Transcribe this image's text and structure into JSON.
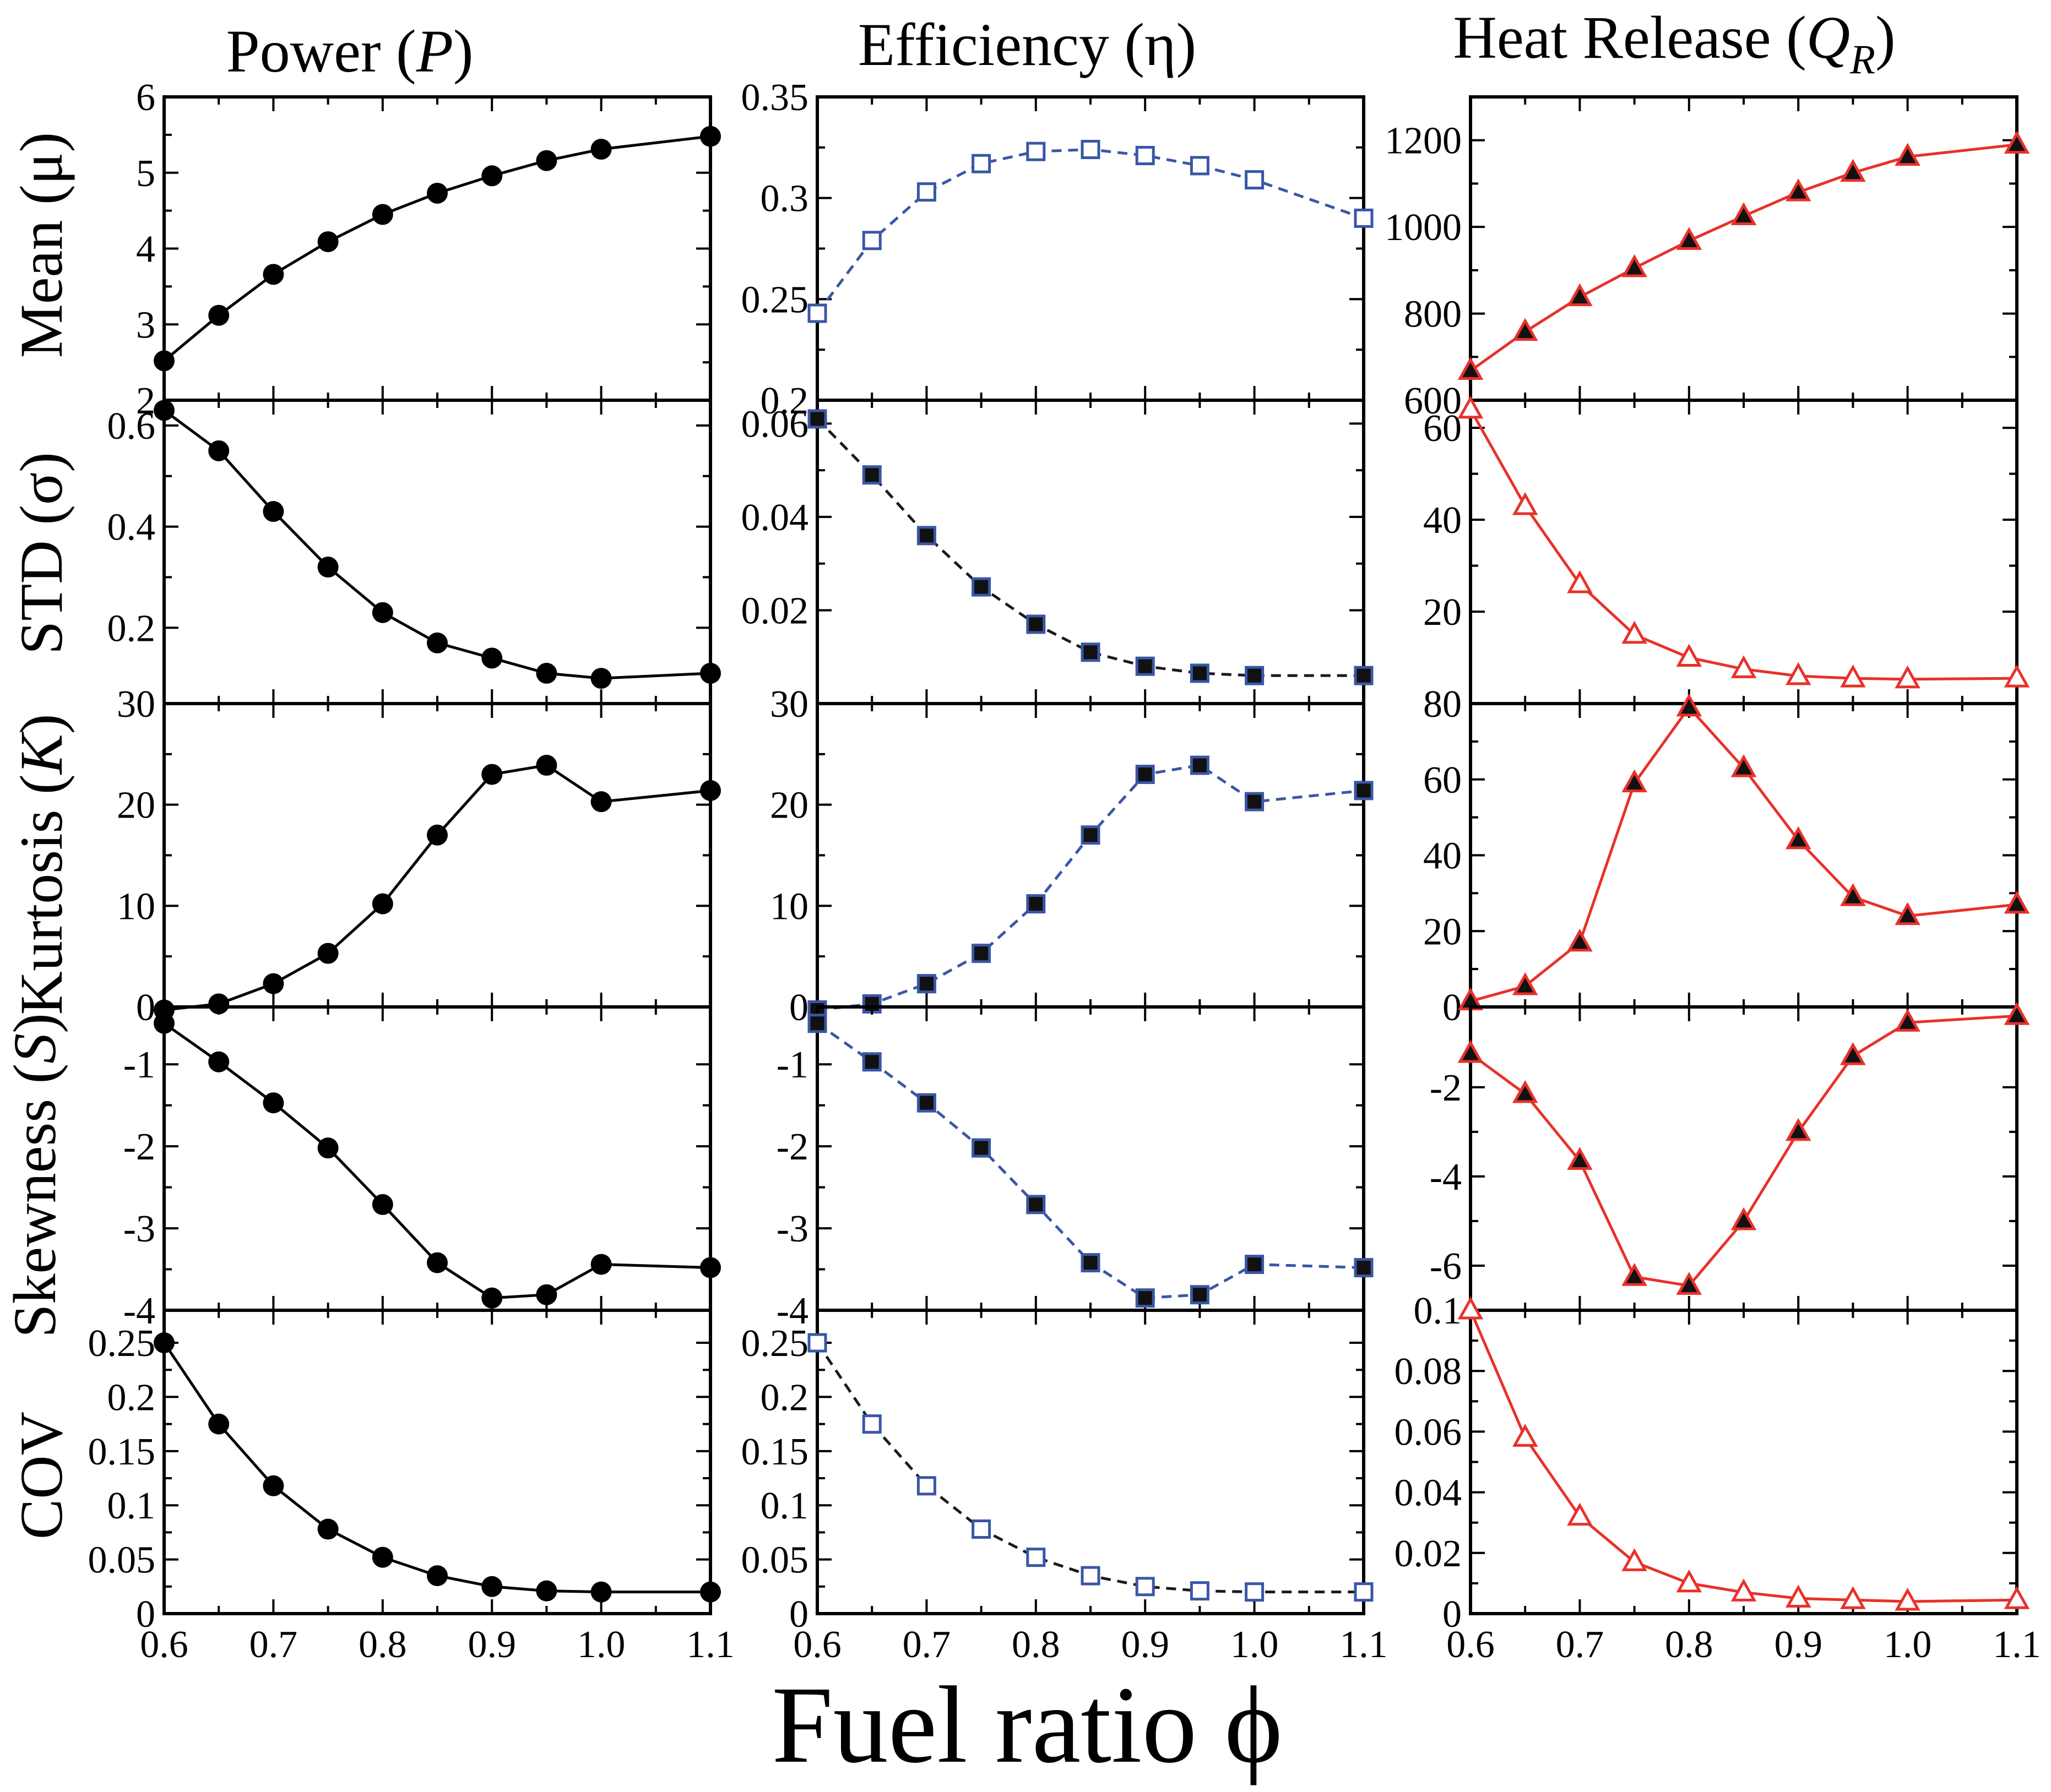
{
  "figure": {
    "x_label": "Fuel ratio ϕ",
    "x_ticks": [
      "0.6",
      "0.7",
      "0.8",
      "0.9",
      "1.0",
      "1.1"
    ]
  },
  "columns": [
    {
      "title": "Power",
      "symbol": "P",
      "color": "#000000"
    },
    {
      "title": "Efficiency",
      "symbol": "η",
      "color": "#3a56a5"
    },
    {
      "title": "Heat Release",
      "symbol": "Q",
      "subscript": "R",
      "color": "#e8312a"
    }
  ],
  "rows": [
    {
      "label": "Mean",
      "symbol": "μ",
      "symbol_italic": false
    },
    {
      "label": "STD",
      "symbol": "σ",
      "symbol_italic": false
    },
    {
      "label": "Kurtosis",
      "symbol": "K",
      "symbol_italic": true
    },
    {
      "label": "Skewness",
      "symbol": "S",
      "symbol_italic": true
    },
    {
      "label": "COV",
      "symbol": "",
      "symbol_italic": false
    }
  ],
  "chart_data": [
    {
      "type": "line",
      "column": 0,
      "row": 0,
      "x": [
        0.6,
        0.65,
        0.7,
        0.75,
        0.8,
        0.85,
        0.9,
        0.95,
        1.0,
        1.1
      ],
      "values": [
        2.52,
        3.12,
        3.66,
        4.09,
        4.45,
        4.73,
        4.96,
        5.16,
        5.31,
        5.48
      ],
      "ylim": [
        2,
        6
      ],
      "yticks": [
        2,
        3,
        4,
        5,
        6
      ],
      "ytick_labels": [
        "2",
        "3",
        "4",
        "5",
        "6"
      ],
      "marker": "circle",
      "line_color": "#000000",
      "marker_color": "#000000"
    },
    {
      "type": "line",
      "column": 0,
      "row": 1,
      "x": [
        0.6,
        0.65,
        0.7,
        0.75,
        0.8,
        0.85,
        0.9,
        0.95,
        1.0,
        1.1
      ],
      "values": [
        0.63,
        0.55,
        0.43,
        0.32,
        0.23,
        0.17,
        0.14,
        0.11,
        0.1,
        0.11
      ],
      "ylim": [
        0.05,
        0.65
      ],
      "yticks": [
        0.2,
        0.4,
        0.6
      ],
      "ytick_labels": [
        "0.2",
        "0.4",
        "0.6"
      ],
      "marker": "circle",
      "line_color": "#000000",
      "marker_color": "#000000"
    },
    {
      "type": "line",
      "column": 0,
      "row": 2,
      "x": [
        0.6,
        0.65,
        0.7,
        0.75,
        0.8,
        0.85,
        0.9,
        0.95,
        1.0,
        1.1
      ],
      "values": [
        -0.3,
        0.3,
        2.3,
        5.3,
        10.2,
        17.0,
        23.0,
        23.9,
        20.3,
        21.4
      ],
      "ylim": [
        0,
        30
      ],
      "yticks": [
        0,
        10,
        20,
        30
      ],
      "ytick_labels": [
        "0",
        "10",
        "20",
        "30"
      ],
      "marker": "circle",
      "line_color": "#000000",
      "marker_color": "#000000"
    },
    {
      "type": "line",
      "column": 0,
      "row": 3,
      "x": [
        0.6,
        0.65,
        0.7,
        0.75,
        0.8,
        0.85,
        0.9,
        0.95,
        1.0,
        1.1
      ],
      "values": [
        -0.5,
        -0.97,
        -1.47,
        -2.02,
        -2.71,
        -3.42,
        -3.85,
        -3.81,
        -3.44,
        -3.48
      ],
      "ylim": [
        -4,
        -0.3
      ],
      "yticks": [
        -4,
        -3,
        -2,
        -1
      ],
      "ytick_labels": [
        "-4",
        "-3",
        "-2",
        "-1"
      ],
      "marker": "circle",
      "line_color": "#000000",
      "marker_color": "#000000"
    },
    {
      "type": "line",
      "column": 0,
      "row": 4,
      "x": [
        0.6,
        0.65,
        0.7,
        0.75,
        0.8,
        0.85,
        0.9,
        0.95,
        1.0,
        1.1
      ],
      "values": [
        0.25,
        0.175,
        0.118,
        0.078,
        0.052,
        0.035,
        0.025,
        0.021,
        0.02,
        0.02
      ],
      "ylim": [
        0,
        0.28
      ],
      "yticks": [
        0,
        0.05,
        0.1,
        0.15,
        0.2,
        0.25
      ],
      "ytick_labels": [
        "0",
        "0.05",
        "0.1",
        "0.15",
        "0.2",
        "0.25"
      ],
      "marker": "circle",
      "line_color": "#000000",
      "marker_color": "#000000"
    },
    {
      "type": "line",
      "column": 1,
      "row": 0,
      "x": [
        0.6,
        0.65,
        0.7,
        0.75,
        0.8,
        0.85,
        0.9,
        0.95,
        1.0,
        1.1
      ],
      "values": [
        0.243,
        0.279,
        0.303,
        0.317,
        0.323,
        0.324,
        0.321,
        0.316,
        0.309,
        0.29
      ],
      "ylim": [
        0.2,
        0.35
      ],
      "yticks": [
        0.2,
        0.25,
        0.3,
        0.35
      ],
      "ytick_labels": [
        "0.2",
        "0.25",
        "0.3",
        "0.35"
      ],
      "marker": "square-open",
      "line_color": "#3a56a5",
      "marker_color": "#3a56a5"
    },
    {
      "type": "line",
      "column": 1,
      "row": 1,
      "x": [
        0.6,
        0.65,
        0.7,
        0.75,
        0.8,
        0.85,
        0.9,
        0.95,
        1.0,
        1.1
      ],
      "values": [
        0.061,
        0.049,
        0.036,
        0.025,
        0.017,
        0.011,
        0.008,
        0.0065,
        0.006,
        0.006
      ],
      "ylim": [
        0,
        0.065
      ],
      "yticks": [
        0.02,
        0.04,
        0.06
      ],
      "ytick_labels": [
        "0.02",
        "0.04",
        "0.06"
      ],
      "marker": "square-filled",
      "line_color": "#1a1a1a",
      "marker_color": "#3a56a5"
    },
    {
      "type": "line",
      "column": 1,
      "row": 2,
      "x": [
        0.6,
        0.65,
        0.7,
        0.75,
        0.8,
        0.85,
        0.9,
        0.95,
        1.0,
        1.1
      ],
      "values": [
        -0.3,
        0.3,
        2.3,
        5.3,
        10.2,
        17.0,
        23.0,
        23.9,
        20.3,
        21.4
      ],
      "ylim": [
        0,
        30
      ],
      "yticks": [
        0,
        10,
        20,
        30
      ],
      "ytick_labels": [
        "0",
        "10",
        "20",
        "30"
      ],
      "marker": "square-filled",
      "line_color": "#3a56a5",
      "marker_color": "#3a56a5"
    },
    {
      "type": "line",
      "column": 1,
      "row": 3,
      "x": [
        0.6,
        0.65,
        0.7,
        0.75,
        0.8,
        0.85,
        0.9,
        0.95,
        1.0,
        1.1
      ],
      "values": [
        -0.5,
        -0.97,
        -1.47,
        -2.02,
        -2.71,
        -3.42,
        -3.85,
        -3.81,
        -3.44,
        -3.48
      ],
      "ylim": [
        -4,
        -0.3
      ],
      "yticks": [
        -4,
        -3,
        -2,
        -1
      ],
      "ytick_labels": [
        "-4",
        "-3",
        "-2",
        "-1"
      ],
      "marker": "square-filled",
      "line_color": "#3a56a5",
      "marker_color": "#3a56a5"
    },
    {
      "type": "line",
      "column": 1,
      "row": 4,
      "x": [
        0.6,
        0.65,
        0.7,
        0.75,
        0.8,
        0.85,
        0.9,
        0.95,
        1.0,
        1.1
      ],
      "values": [
        0.25,
        0.175,
        0.118,
        0.078,
        0.052,
        0.035,
        0.025,
        0.021,
        0.02,
        0.02
      ],
      "ylim": [
        0,
        0.28
      ],
      "yticks": [
        0,
        0.05,
        0.1,
        0.15,
        0.2,
        0.25
      ],
      "ytick_labels": [
        "0",
        "0.05",
        "0.1",
        "0.15",
        "0.2",
        "0.25"
      ],
      "marker": "square-open",
      "line_color": "#1a1a1a",
      "marker_color": "#3a56a5"
    },
    {
      "type": "line",
      "column": 2,
      "row": 0,
      "x": [
        0.6,
        0.65,
        0.7,
        0.75,
        0.8,
        0.85,
        0.9,
        0.95,
        1.0,
        1.1
      ],
      "values": [
        668,
        758,
        838,
        905,
        968,
        1025,
        1080,
        1125,
        1162,
        1190
      ],
      "ylim": [
        600,
        1300
      ],
      "yticks": [
        600,
        800,
        1000,
        1200
      ],
      "ytick_labels": [
        "600",
        "800",
        "1000",
        "1200"
      ],
      "marker": "triangle-filled",
      "line_color": "#e8312a",
      "marker_color": "#e8312a"
    },
    {
      "type": "line",
      "column": 2,
      "row": 1,
      "x": [
        0.6,
        0.65,
        0.7,
        0.75,
        0.8,
        0.85,
        0.9,
        0.95,
        1.0,
        1.1
      ],
      "values": [
        64,
        43,
        26,
        15,
        10,
        7.5,
        6,
        5.5,
        5.3,
        5.5
      ],
      "ylim": [
        0,
        66
      ],
      "yticks": [
        20,
        40,
        60
      ],
      "ytick_labels": [
        "20",
        "40",
        "60"
      ],
      "marker": "triangle-open",
      "line_color": "#e8312a",
      "marker_color": "#e8312a"
    },
    {
      "type": "line",
      "column": 2,
      "row": 2,
      "x": [
        0.6,
        0.65,
        0.7,
        0.75,
        0.8,
        0.85,
        0.9,
        0.95,
        1.0,
        1.1
      ],
      "values": [
        1.5,
        5.5,
        17,
        59,
        79,
        63,
        44,
        29,
        24,
        27
      ],
      "ylim": [
        0,
        80
      ],
      "yticks": [
        0,
        20,
        40,
        60,
        80
      ],
      "ytick_labels": [
        "0",
        "20",
        "40",
        "60",
        "80"
      ],
      "marker": "triangle-filled",
      "line_color": "#e8312a",
      "marker_color": "#e8312a"
    },
    {
      "type": "line",
      "column": 2,
      "row": 3,
      "x": [
        0.6,
        0.65,
        0.7,
        0.75,
        0.8,
        0.85,
        0.9,
        0.95,
        1.0,
        1.1
      ],
      "values": [
        -1.25,
        -2.15,
        -3.65,
        -6.25,
        -6.45,
        -5.0,
        -3.0,
        -1.3,
        -0.55,
        -0.4
      ],
      "ylim": [
        -7,
        -0.2
      ],
      "yticks": [
        -6,
        -4,
        -2
      ],
      "ytick_labels": [
        "-6",
        "-4",
        "-2"
      ],
      "marker": "triangle-filled",
      "line_color": "#e8312a",
      "marker_color": "#e8312a"
    },
    {
      "type": "line",
      "column": 2,
      "row": 4,
      "x": [
        0.6,
        0.65,
        0.7,
        0.75,
        0.8,
        0.85,
        0.9,
        0.95,
        1.0,
        1.1
      ],
      "values": [
        0.1,
        0.058,
        0.032,
        0.017,
        0.01,
        0.007,
        0.005,
        0.0045,
        0.004,
        0.0045
      ],
      "ylim": [
        0,
        0.1
      ],
      "yticks": [
        0,
        0.02,
        0.04,
        0.06,
        0.08,
        0.1
      ],
      "ytick_labels": [
        "0",
        "0.02",
        "0.04",
        "0.06",
        "0.08",
        "0.1"
      ],
      "marker": "triangle-open",
      "line_color": "#e8312a",
      "marker_color": "#e8312a"
    }
  ]
}
